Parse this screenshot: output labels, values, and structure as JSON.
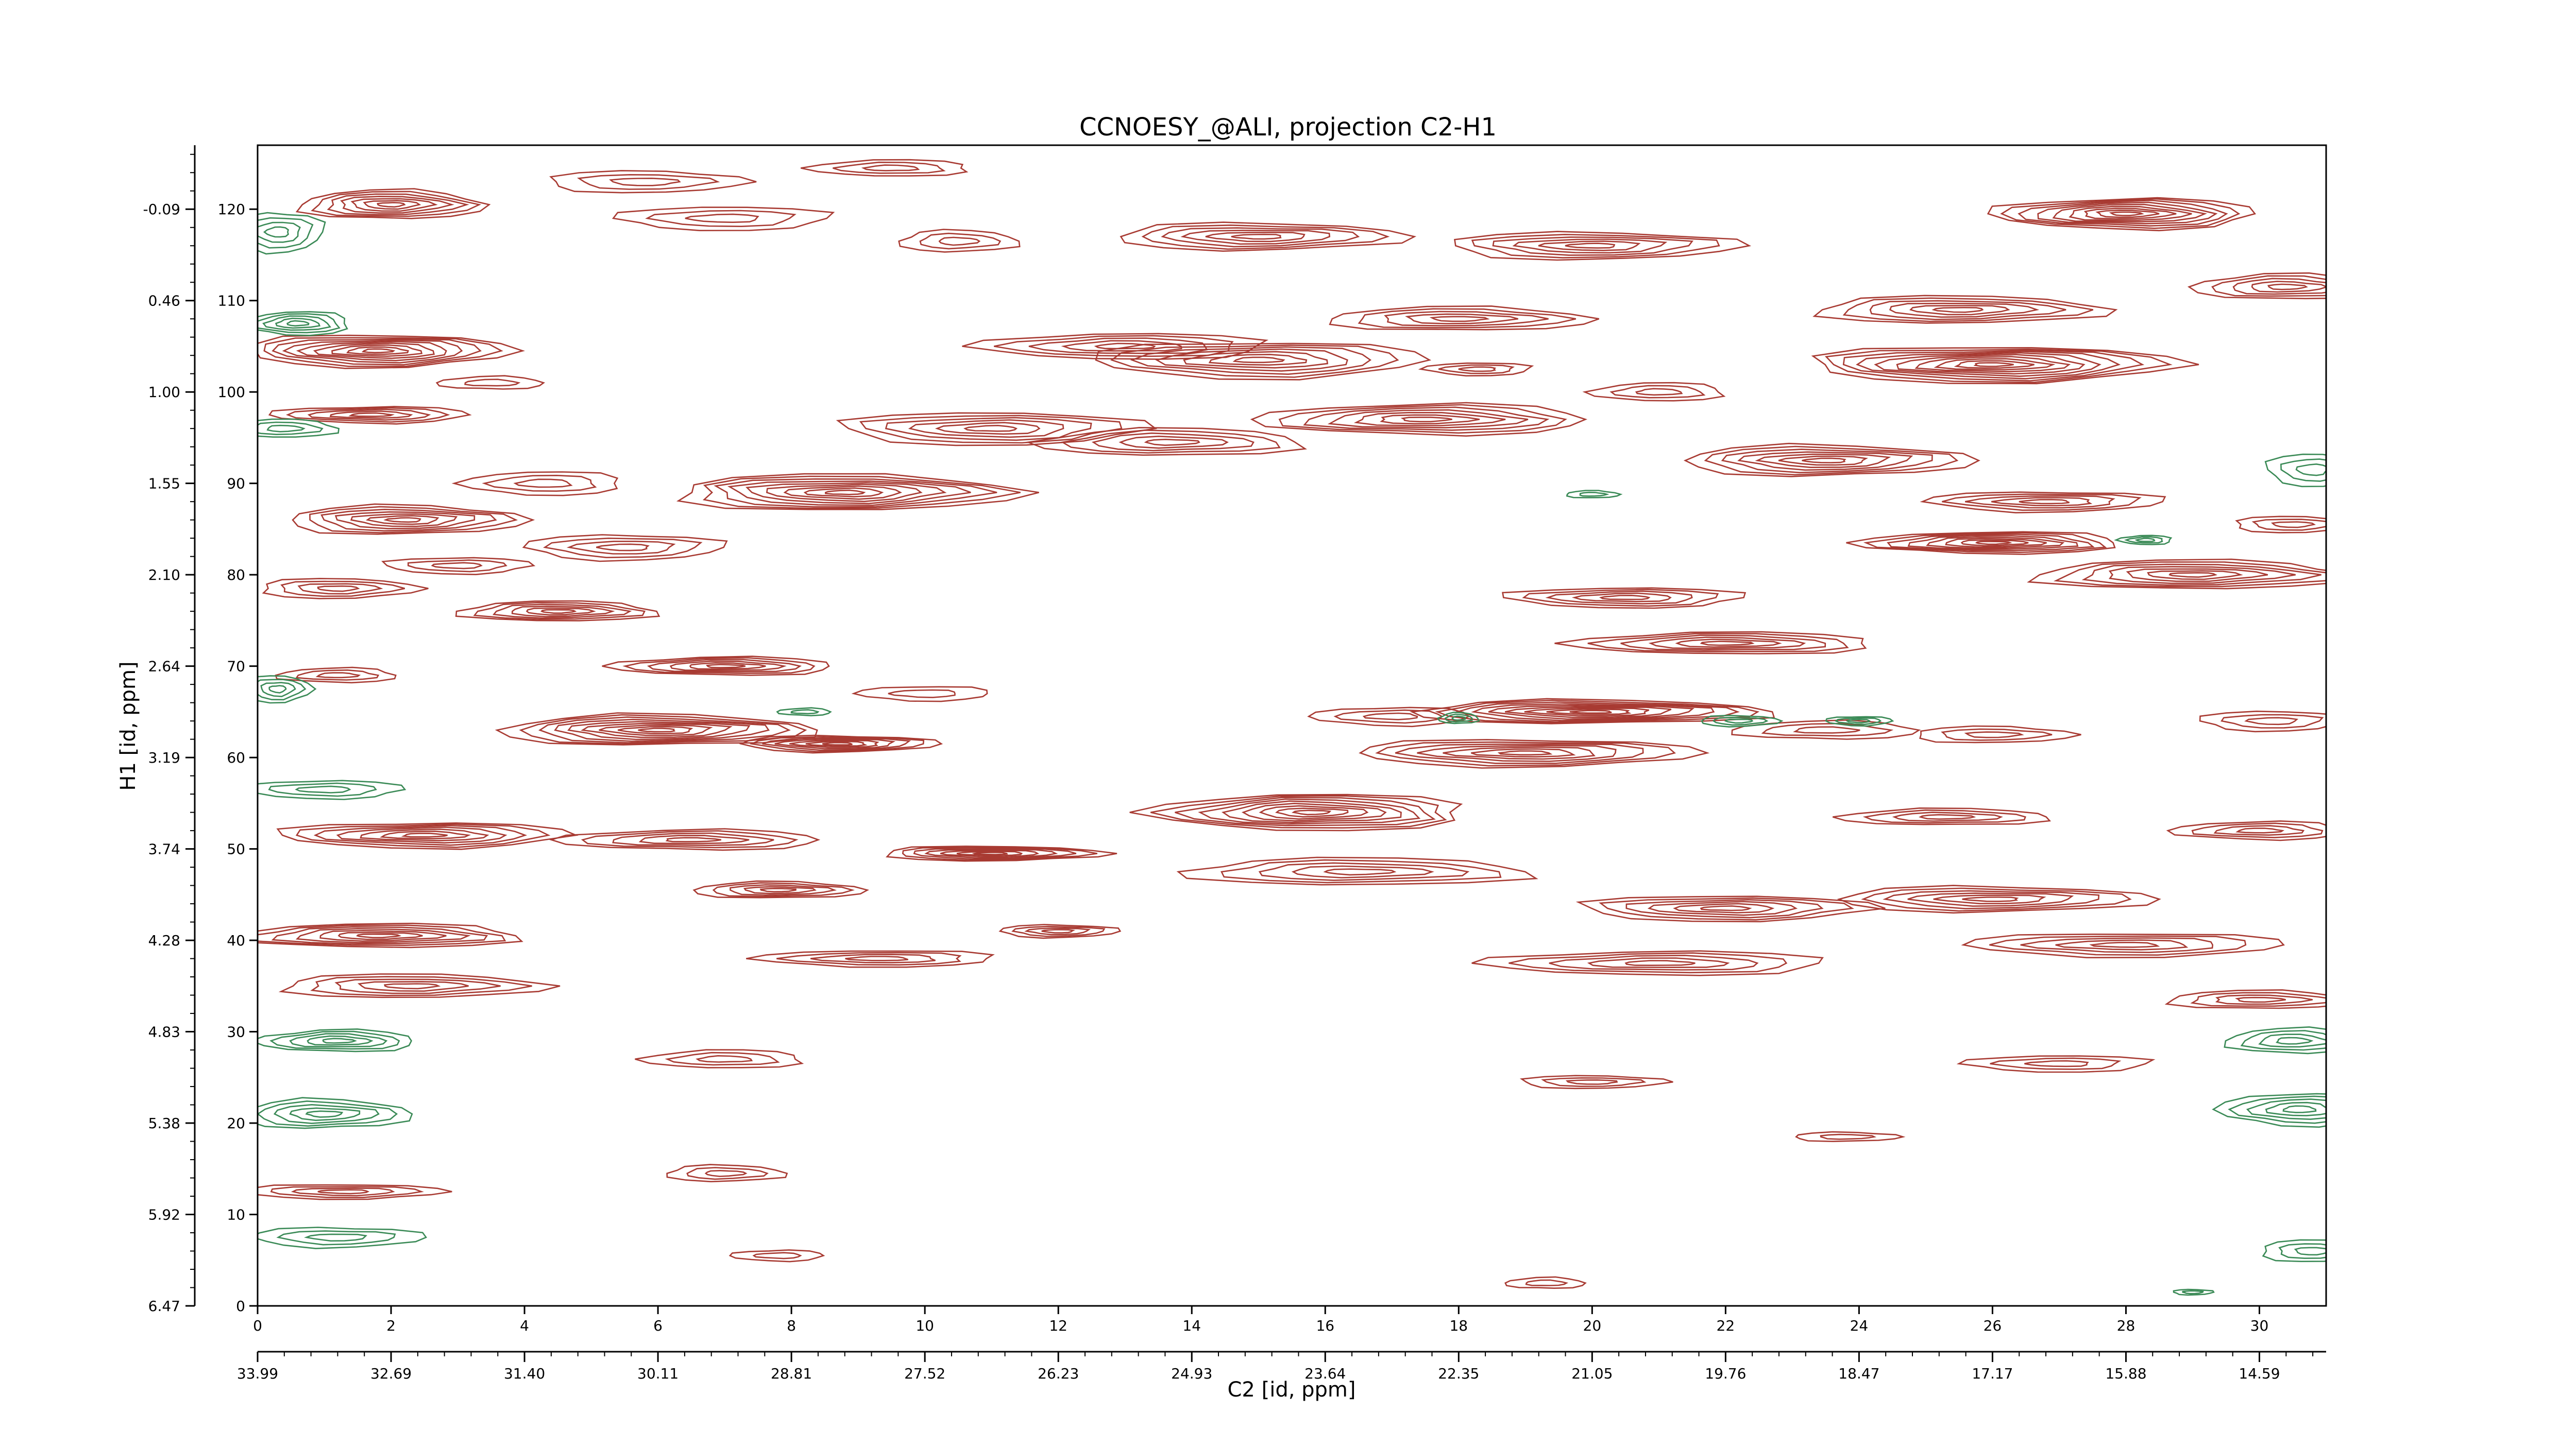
{
  "chart_data": {
    "type": "contour",
    "title": "CCNOESY_@ALI, projection C2-H1",
    "xlabel": "C2 [id, ppm]",
    "ylabel": "H1 [id, ppm]",
    "xlim": [
      0,
      31
    ],
    "ylim": [
      0,
      127
    ],
    "x_ticks": [
      0,
      2,
      4,
      6,
      8,
      10,
      12,
      14,
      16,
      18,
      20,
      22,
      24,
      26,
      28,
      30
    ],
    "x_ppm_labels": [
      "33.99",
      "32.69",
      "31.40",
      "30.11",
      "28.81",
      "27.52",
      "26.23",
      "24.93",
      "23.64",
      "22.35",
      "21.05",
      "19.76",
      "18.47",
      "17.17",
      "15.88",
      "14.59"
    ],
    "y_ticks": [
      0,
      10,
      20,
      30,
      40,
      50,
      60,
      70,
      80,
      90,
      100,
      110,
      120
    ],
    "y_ppm_labels": [
      "6.47",
      "5.92",
      "5.38",
      "4.83",
      "4.28",
      "3.74",
      "3.19",
      "2.64",
      "2.10",
      "1.55",
      "1.00",
      "0.46",
      "-0.09"
    ],
    "colors": {
      "positive": "#a83a32",
      "negative": "#3a8a56"
    },
    "peaks": [
      {
        "x": 2.0,
        "y": 120.5,
        "sx": 1.4,
        "sy": 1.6,
        "sign": "positive",
        "levels": 7
      },
      {
        "x": 5.8,
        "y": 123.0,
        "sx": 1.5,
        "sy": 1.2,
        "sign": "positive",
        "levels": 3
      },
      {
        "x": 7.0,
        "y": 119.0,
        "sx": 1.6,
        "sy": 1.3,
        "sign": "positive",
        "levels": 3
      },
      {
        "x": 9.5,
        "y": 124.5,
        "sx": 1.2,
        "sy": 0.9,
        "sign": "positive",
        "levels": 3
      },
      {
        "x": 10.5,
        "y": 116.5,
        "sx": 0.9,
        "sy": 1.2,
        "sign": "positive",
        "levels": 3
      },
      {
        "x": 1.8,
        "y": 104.5,
        "sx": 2.0,
        "sy": 1.8,
        "sign": "positive",
        "levels": 9
      },
      {
        "x": 1.7,
        "y": 97.5,
        "sx": 1.5,
        "sy": 0.9,
        "sign": "positive",
        "levels": 5
      },
      {
        "x": 3.5,
        "y": 101.0,
        "sx": 0.8,
        "sy": 0.7,
        "sign": "positive",
        "levels": 2
      },
      {
        "x": 2.2,
        "y": 86.0,
        "sx": 1.8,
        "sy": 1.6,
        "sign": "positive",
        "levels": 7
      },
      {
        "x": 5.5,
        "y": 83.0,
        "sx": 1.5,
        "sy": 1.4,
        "sign": "positive",
        "levels": 4
      },
      {
        "x": 4.3,
        "y": 90.0,
        "sx": 1.2,
        "sy": 1.3,
        "sign": "positive",
        "levels": 3
      },
      {
        "x": 4.5,
        "y": 76.0,
        "sx": 1.5,
        "sy": 1.1,
        "sign": "positive",
        "levels": 6
      },
      {
        "x": 1.2,
        "y": 78.5,
        "sx": 1.2,
        "sy": 1.1,
        "sign": "positive",
        "levels": 4
      },
      {
        "x": 3.0,
        "y": 81.0,
        "sx": 1.1,
        "sy": 0.9,
        "sign": "positive",
        "levels": 3
      },
      {
        "x": 7.0,
        "y": 70.0,
        "sx": 1.7,
        "sy": 1.0,
        "sign": "positive",
        "levels": 6
      },
      {
        "x": 6.0,
        "y": 63.0,
        "sx": 2.4,
        "sy": 1.7,
        "sign": "positive",
        "levels": 9
      },
      {
        "x": 8.7,
        "y": 61.5,
        "sx": 1.5,
        "sy": 0.9,
        "sign": "positive",
        "levels": 7
      },
      {
        "x": 10.0,
        "y": 67.0,
        "sx": 1.0,
        "sy": 0.8,
        "sign": "positive",
        "levels": 2
      },
      {
        "x": 1.2,
        "y": 69.0,
        "sx": 0.9,
        "sy": 0.8,
        "sign": "positive",
        "levels": 3
      },
      {
        "x": 8.8,
        "y": 89.0,
        "sx": 2.6,
        "sy": 2.0,
        "sign": "positive",
        "levels": 9
      },
      {
        "x": 11.0,
        "y": 96.0,
        "sx": 2.3,
        "sy": 1.8,
        "sign": "positive",
        "levels": 6
      },
      {
        "x": 13.0,
        "y": 105.0,
        "sx": 2.2,
        "sy": 1.4,
        "sign": "positive",
        "levels": 5
      },
      {
        "x": 13.7,
        "y": 94.5,
        "sx": 2.0,
        "sy": 1.5,
        "sign": "positive",
        "levels": 5
      },
      {
        "x": 15.0,
        "y": 117.0,
        "sx": 2.2,
        "sy": 1.5,
        "sign": "positive",
        "levels": 6
      },
      {
        "x": 15.0,
        "y": 103.5,
        "sx": 2.5,
        "sy": 2.0,
        "sign": "positive",
        "levels": 7
      },
      {
        "x": 17.5,
        "y": 97.0,
        "sx": 2.5,
        "sy": 1.7,
        "sign": "positive",
        "levels": 7
      },
      {
        "x": 18.0,
        "y": 108.0,
        "sx": 2.0,
        "sy": 1.3,
        "sign": "positive",
        "levels": 5
      },
      {
        "x": 20.0,
        "y": 116.0,
        "sx": 2.2,
        "sy": 1.5,
        "sign": "positive",
        "levels": 6
      },
      {
        "x": 18.3,
        "y": 102.5,
        "sx": 0.8,
        "sy": 0.7,
        "sign": "positive",
        "levels": 3
      },
      {
        "x": 21.0,
        "y": 100.0,
        "sx": 1.0,
        "sy": 1.0,
        "sign": "positive",
        "levels": 3
      },
      {
        "x": 25.5,
        "y": 109.0,
        "sx": 2.2,
        "sy": 1.5,
        "sign": "positive",
        "levels": 6
      },
      {
        "x": 26.0,
        "y": 103.0,
        "sx": 2.8,
        "sy": 2.0,
        "sign": "positive",
        "levels": 10
      },
      {
        "x": 28.0,
        "y": 119.5,
        "sx": 2.0,
        "sy": 1.7,
        "sign": "positive",
        "levels": 9
      },
      {
        "x": 30.4,
        "y": 111.5,
        "sx": 1.4,
        "sy": 1.4,
        "sign": "positive",
        "levels": 5
      },
      {
        "x": 23.5,
        "y": 92.5,
        "sx": 2.2,
        "sy": 1.7,
        "sign": "positive",
        "levels": 7
      },
      {
        "x": 26.8,
        "y": 88.0,
        "sx": 1.8,
        "sy": 1.1,
        "sign": "positive",
        "levels": 5
      },
      {
        "x": 26.0,
        "y": 83.5,
        "sx": 2.0,
        "sy": 1.2,
        "sign": "positive",
        "levels": 8
      },
      {
        "x": 29.0,
        "y": 80.0,
        "sx": 2.4,
        "sy": 1.6,
        "sign": "positive",
        "levels": 7
      },
      {
        "x": 30.5,
        "y": 85.5,
        "sx": 0.9,
        "sy": 0.9,
        "sign": "positive",
        "levels": 3
      },
      {
        "x": 20.5,
        "y": 77.5,
        "sx": 1.8,
        "sy": 1.1,
        "sign": "positive",
        "levels": 5
      },
      {
        "x": 22.0,
        "y": 72.5,
        "sx": 2.3,
        "sy": 1.2,
        "sign": "positive",
        "levels": 6
      },
      {
        "x": 20.0,
        "y": 65.0,
        "sx": 2.7,
        "sy": 1.3,
        "sign": "positive",
        "levels": 9
      },
      {
        "x": 19.0,
        "y": 60.5,
        "sx": 2.6,
        "sy": 1.5,
        "sign": "positive",
        "levels": 7
      },
      {
        "x": 17.0,
        "y": 64.5,
        "sx": 1.2,
        "sy": 1.0,
        "sign": "positive",
        "levels": 3
      },
      {
        "x": 23.5,
        "y": 63.0,
        "sx": 1.4,
        "sy": 1.0,
        "sign": "positive",
        "levels": 3
      },
      {
        "x": 26.0,
        "y": 62.5,
        "sx": 1.2,
        "sy": 0.9,
        "sign": "positive",
        "levels": 3
      },
      {
        "x": 30.2,
        "y": 64.0,
        "sx": 1.1,
        "sy": 1.1,
        "sign": "positive",
        "levels": 3
      },
      {
        "x": 15.8,
        "y": 54.0,
        "sx": 2.4,
        "sy": 2.0,
        "sign": "positive",
        "levels": 9
      },
      {
        "x": 16.5,
        "y": 47.5,
        "sx": 2.6,
        "sy": 1.5,
        "sign": "positive",
        "levels": 5
      },
      {
        "x": 11.0,
        "y": 49.5,
        "sx": 1.7,
        "sy": 0.8,
        "sign": "positive",
        "levels": 7
      },
      {
        "x": 2.5,
        "y": 51.5,
        "sx": 2.2,
        "sy": 1.4,
        "sign": "positive",
        "levels": 7
      },
      {
        "x": 6.5,
        "y": 51.0,
        "sx": 2.0,
        "sy": 1.1,
        "sign": "positive",
        "levels": 5
      },
      {
        "x": 7.8,
        "y": 45.5,
        "sx": 1.3,
        "sy": 0.9,
        "sign": "positive",
        "levels": 5
      },
      {
        "x": 12.0,
        "y": 41.0,
        "sx": 0.9,
        "sy": 0.7,
        "sign": "positive",
        "levels": 4
      },
      {
        "x": 9.3,
        "y": 38.0,
        "sx": 1.8,
        "sy": 0.9,
        "sign": "positive",
        "levels": 4
      },
      {
        "x": 1.8,
        "y": 40.5,
        "sx": 2.2,
        "sy": 1.3,
        "sign": "positive",
        "levels": 7
      },
      {
        "x": 2.3,
        "y": 35.0,
        "sx": 2.0,
        "sy": 1.3,
        "sign": "positive",
        "levels": 5
      },
      {
        "x": 22.0,
        "y": 43.5,
        "sx": 2.2,
        "sy": 1.4,
        "sign": "positive",
        "levels": 6
      },
      {
        "x": 21.0,
        "y": 37.5,
        "sx": 2.6,
        "sy": 1.3,
        "sign": "positive",
        "levels": 5
      },
      {
        "x": 25.3,
        "y": 53.5,
        "sx": 1.6,
        "sy": 0.9,
        "sign": "positive",
        "levels": 4
      },
      {
        "x": 26.0,
        "y": 44.5,
        "sx": 2.4,
        "sy": 1.4,
        "sign": "positive",
        "levels": 6
      },
      {
        "x": 28.0,
        "y": 39.5,
        "sx": 2.4,
        "sy": 1.3,
        "sign": "positive",
        "levels": 5
      },
      {
        "x": 30.0,
        "y": 52.0,
        "sx": 1.3,
        "sy": 1.0,
        "sign": "positive",
        "levels": 4
      },
      {
        "x": 30.0,
        "y": 33.5,
        "sx": 1.4,
        "sy": 1.0,
        "sign": "positive",
        "levels": 4
      },
      {
        "x": 20.0,
        "y": 24.5,
        "sx": 1.1,
        "sy": 0.7,
        "sign": "positive",
        "levels": 3
      },
      {
        "x": 27.0,
        "y": 26.5,
        "sx": 1.4,
        "sy": 0.9,
        "sign": "positive",
        "levels": 3
      },
      {
        "x": 7.0,
        "y": 27.0,
        "sx": 1.2,
        "sy": 1.0,
        "sign": "positive",
        "levels": 3
      },
      {
        "x": 7.0,
        "y": 14.5,
        "sx": 0.9,
        "sy": 0.9,
        "sign": "positive",
        "levels": 3
      },
      {
        "x": 1.3,
        "y": 12.5,
        "sx": 1.5,
        "sy": 0.8,
        "sign": "positive",
        "levels": 4
      },
      {
        "x": 7.8,
        "y": 5.5,
        "sx": 0.7,
        "sy": 0.6,
        "sign": "positive",
        "levels": 2
      },
      {
        "x": 19.3,
        "y": 2.5,
        "sx": 0.6,
        "sy": 0.6,
        "sign": "positive",
        "levels": 2
      },
      {
        "x": 23.8,
        "y": 18.5,
        "sx": 0.8,
        "sy": 0.5,
        "sign": "positive",
        "levels": 2
      },
      {
        "x": 0.3,
        "y": 117.5,
        "sx": 0.7,
        "sy": 2.2,
        "sign": "negative",
        "levels": 4
      },
      {
        "x": 0.6,
        "y": 107.5,
        "sx": 0.8,
        "sy": 1.3,
        "sign": "negative",
        "levels": 5
      },
      {
        "x": 0.4,
        "y": 96.0,
        "sx": 0.8,
        "sy": 1.0,
        "sign": "negative",
        "levels": 3
      },
      {
        "x": 0.3,
        "y": 67.5,
        "sx": 0.5,
        "sy": 1.5,
        "sign": "negative",
        "levels": 4
      },
      {
        "x": 1.0,
        "y": 56.5,
        "sx": 1.2,
        "sy": 1.0,
        "sign": "negative",
        "levels": 3
      },
      {
        "x": 1.2,
        "y": 29.0,
        "sx": 1.2,
        "sy": 1.2,
        "sign": "negative",
        "levels": 5
      },
      {
        "x": 1.0,
        "y": 21.0,
        "sx": 1.3,
        "sy": 1.6,
        "sign": "negative",
        "levels": 5
      },
      {
        "x": 1.2,
        "y": 7.5,
        "sx": 1.3,
        "sy": 1.1,
        "sign": "negative",
        "levels": 3
      },
      {
        "x": 30.6,
        "y": 21.5,
        "sx": 1.2,
        "sy": 1.8,
        "sign": "negative",
        "levels": 5
      },
      {
        "x": 30.5,
        "y": 29.0,
        "sx": 1.0,
        "sy": 1.4,
        "sign": "negative",
        "levels": 4
      },
      {
        "x": 30.8,
        "y": 6.0,
        "sx": 0.8,
        "sy": 1.2,
        "sign": "negative",
        "levels": 3
      },
      {
        "x": 30.8,
        "y": 91.5,
        "sx": 0.7,
        "sy": 1.8,
        "sign": "negative",
        "levels": 3
      },
      {
        "x": 28.3,
        "y": 83.8,
        "sx": 0.4,
        "sy": 0.5,
        "sign": "negative",
        "levels": 3
      },
      {
        "x": 18.0,
        "y": 64.3,
        "sx": 0.3,
        "sy": 0.6,
        "sign": "negative",
        "levels": 3
      },
      {
        "x": 22.2,
        "y": 64.0,
        "sx": 0.6,
        "sy": 0.6,
        "sign": "negative",
        "levels": 3
      },
      {
        "x": 24.0,
        "y": 64.0,
        "sx": 0.5,
        "sy": 0.5,
        "sign": "negative",
        "levels": 3
      },
      {
        "x": 8.2,
        "y": 65.0,
        "sx": 0.4,
        "sy": 0.4,
        "sign": "negative",
        "levels": 2
      },
      {
        "x": 20.0,
        "y": 88.8,
        "sx": 0.4,
        "sy": 0.4,
        "sign": "negative",
        "levels": 2
      },
      {
        "x": 29.0,
        "y": 1.5,
        "sx": 0.3,
        "sy": 0.3,
        "sign": "negative",
        "levels": 2
      }
    ]
  }
}
